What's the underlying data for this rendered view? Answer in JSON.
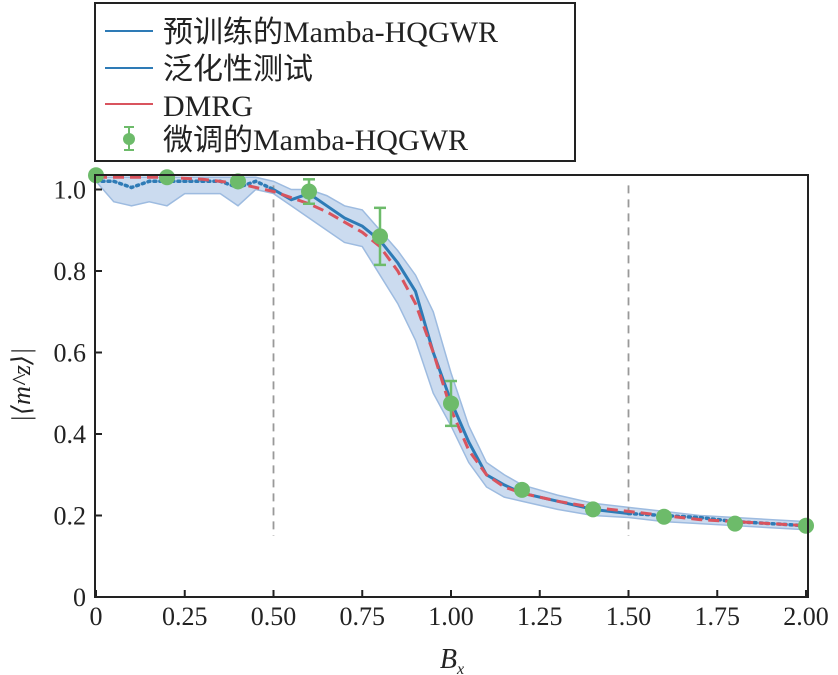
{
  "chart_data": {
    "type": "line",
    "xlabel": "B",
    "xlabel_sub": "x",
    "ylabel": "|⟨m^z⟩|",
    "xlim": [
      0,
      2.0
    ],
    "ylim": [
      0,
      1.035
    ],
    "xticks": [
      "0",
      "0.25",
      "0.50",
      "0.75",
      "1.00",
      "1.25",
      "1.50",
      "1.75",
      "2.00"
    ],
    "xtick_values": [
      0,
      0.25,
      0.5,
      0.75,
      1.0,
      1.25,
      1.5,
      1.75,
      2.0
    ],
    "yticks": [
      "0",
      "0.2",
      "0.4",
      "0.6",
      "0.8",
      "1.0"
    ],
    "ytick_values": [
      0,
      0.2,
      0.4,
      0.6,
      0.8,
      1.0
    ],
    "grid": false,
    "legend_position": "top-left (above plot)",
    "vlines": [
      0.5,
      1.5
    ],
    "legend": [
      {
        "label": "预训练的Mamba-HQGWR",
        "color": "#2e7bb6",
        "style": "line"
      },
      {
        "label": "泛化性测试",
        "color": "#2e7bb6",
        "style": "line"
      },
      {
        "label": "DMRG",
        "color": "#d9545e",
        "style": "line"
      },
      {
        "label": "微调的Mamba-HQGWR",
        "color": "#6dbb6a",
        "style": "marker-errorbar"
      }
    ],
    "series": [
      {
        "name": "DMRG",
        "color": "#d9545e",
        "x": [
          0,
          0.1,
          0.2,
          0.3,
          0.4,
          0.5,
          0.55,
          0.6,
          0.65,
          0.7,
          0.75,
          0.8,
          0.85,
          0.9,
          0.95,
          1.0,
          1.05,
          1.1,
          1.15,
          1.2,
          1.3,
          1.4,
          1.5,
          1.6,
          1.7,
          1.8,
          1.9,
          2.0
        ],
        "y": [
          1.03,
          1.03,
          1.03,
          1.025,
          1.015,
          0.995,
          0.98,
          0.965,
          0.945,
          0.92,
          0.895,
          0.86,
          0.8,
          0.72,
          0.6,
          0.46,
          0.36,
          0.3,
          0.27,
          0.255,
          0.235,
          0.22,
          0.21,
          0.2,
          0.19,
          0.185,
          0.18,
          0.175
        ]
      },
      {
        "name": "预训练的Mamba-HQGWR",
        "color": "#2e7bb6",
        "segments": [
          {
            "x": [
              0,
              0.05,
              0.1,
              0.15,
              0.2,
              0.25,
              0.3,
              0.35,
              0.4,
              0.45,
              0.5
            ],
            "y": [
              1.02,
              1.02,
              1.005,
              1.02,
              1.02,
              1.02,
              1.02,
              1.02,
              1.005,
              1.02,
              1.0
            ]
          },
          {
            "x": [
              1.5,
              1.6,
              1.7,
              1.8,
              1.9,
              2.0
            ],
            "y": [
              0.205,
              0.2,
              0.195,
              0.185,
              0.18,
              0.175
            ]
          }
        ]
      },
      {
        "name": "泛化性测试",
        "color": "#2e7bb6",
        "x": [
          0.5,
          0.55,
          0.6,
          0.65,
          0.7,
          0.75,
          0.8,
          0.85,
          0.9,
          0.95,
          1.0,
          1.05,
          1.1,
          1.15,
          1.2,
          1.3,
          1.4,
          1.5
        ],
        "y": [
          1.0,
          0.975,
          0.99,
          0.96,
          0.93,
          0.91,
          0.875,
          0.82,
          0.75,
          0.6,
          0.48,
          0.38,
          0.3,
          0.275,
          0.255,
          0.235,
          0.215,
          0.205
        ]
      },
      {
        "name": "band",
        "color": "#b9cfea",
        "x": [
          0,
          0.05,
          0.1,
          0.15,
          0.2,
          0.25,
          0.3,
          0.35,
          0.4,
          0.45,
          0.5,
          0.55,
          0.6,
          0.65,
          0.7,
          0.75,
          0.8,
          0.85,
          0.9,
          0.95,
          1.0,
          1.05,
          1.1,
          1.15,
          1.2,
          1.3,
          1.4,
          1.5,
          1.6,
          1.7,
          1.8,
          1.9,
          2.0
        ],
        "lower": [
          1.02,
          0.97,
          0.96,
          0.97,
          0.96,
          0.99,
          0.99,
          0.99,
          0.96,
          1.0,
          0.99,
          0.96,
          0.93,
          0.9,
          0.87,
          0.86,
          0.79,
          0.72,
          0.63,
          0.5,
          0.42,
          0.33,
          0.27,
          0.245,
          0.235,
          0.215,
          0.2,
          0.195,
          0.185,
          0.18,
          0.175,
          0.17,
          0.165
        ],
        "upper": [
          1.03,
          1.03,
          1.03,
          1.03,
          1.03,
          1.03,
          1.03,
          1.03,
          1.03,
          1.03,
          1.02,
          1.0,
          1.0,
          0.985,
          0.96,
          0.95,
          0.9,
          0.85,
          0.79,
          0.7,
          0.55,
          0.42,
          0.33,
          0.3,
          0.275,
          0.25,
          0.23,
          0.22,
          0.21,
          0.2,
          0.195,
          0.19,
          0.185
        ]
      }
    ],
    "finetuned_points": {
      "name": "微调的Mamba-HQGWR",
      "color": "#6dbb6a",
      "x": [
        0,
        0.2,
        0.4,
        0.6,
        0.8,
        1.0,
        1.2,
        1.4,
        1.6,
        1.8,
        2.0
      ],
      "y": [
        1.035,
        1.03,
        1.02,
        0.995,
        0.885,
        0.475,
        0.263,
        0.215,
        0.197,
        0.18,
        0.175
      ],
      "err": [
        0,
        0,
        0,
        0.03,
        0.07,
        0.055,
        0,
        0,
        0,
        0,
        0
      ]
    }
  }
}
